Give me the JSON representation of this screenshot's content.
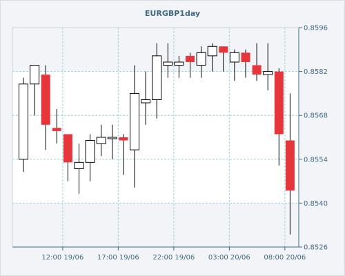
{
  "chart_data": {
    "type": "candlestick",
    "title": "EURGBP1day",
    "ylim": [
      0.8526,
      0.8596
    ],
    "y_ticks": [
      "0.8596",
      "0.8582",
      "0.8568",
      "0.8554",
      "0.8540",
      "0.8526"
    ],
    "x_tick_labels": [
      "12:00 19/06",
      "17:00 19/06",
      "22:00 19/06",
      "03:00 20/06",
      "08:00 20/06"
    ],
    "grid": true,
    "colors": {
      "bullish": "#ffffff",
      "bearish": "#e5363c",
      "outline": "#000000",
      "grid": "#9fd3da",
      "plot_bg_white": "#ffffff",
      "plot_bg": "#f2f4f7",
      "axis_text": "#3f6a85"
    },
    "candles": [
      {
        "open": 0.8554,
        "high": 0.858,
        "low": 0.855,
        "close": 0.8578
      },
      {
        "open": 0.8578,
        "high": 0.8584,
        "low": 0.8568,
        "close": 0.8584
      },
      {
        "open": 0.8581,
        "high": 0.8584,
        "low": 0.8557,
        "close": 0.8565
      },
      {
        "open": 0.8564,
        "high": 0.857,
        "low": 0.8559,
        "close": 0.8563
      },
      {
        "open": 0.8562,
        "high": 0.8562,
        "low": 0.8547,
        "close": 0.8553
      },
      {
        "open": 0.8551,
        "high": 0.8559,
        "low": 0.8543,
        "close": 0.8553
      },
      {
        "open": 0.8553,
        "high": 0.8562,
        "low": 0.8547,
        "close": 0.856
      },
      {
        "open": 0.8559,
        "high": 0.8565,
        "low": 0.8555,
        "close": 0.8561
      },
      {
        "open": 0.8561,
        "high": 0.8565,
        "low": 0.8554,
        "close": 0.8561
      },
      {
        "open": 0.8561,
        "high": 0.8562,
        "low": 0.8549,
        "close": 0.856
      },
      {
        "open": 0.8557,
        "high": 0.8584,
        "low": 0.8545,
        "close": 0.8575
      },
      {
        "open": 0.8572,
        "high": 0.8582,
        "low": 0.8565,
        "close": 0.8573
      },
      {
        "open": 0.8573,
        "high": 0.8591,
        "low": 0.8567,
        "close": 0.8587
      },
      {
        "open": 0.8584,
        "high": 0.8591,
        "low": 0.858,
        "close": 0.8585
      },
      {
        "open": 0.8584,
        "high": 0.8587,
        "low": 0.858,
        "close": 0.8585
      },
      {
        "open": 0.8587,
        "high": 0.8588,
        "low": 0.858,
        "close": 0.8585
      },
      {
        "open": 0.8584,
        "high": 0.859,
        "low": 0.858,
        "close": 0.8588
      },
      {
        "open": 0.8587,
        "high": 0.8591,
        "low": 0.8582,
        "close": 0.859
      },
      {
        "open": 0.859,
        "high": 0.859,
        "low": 0.8582,
        "close": 0.8588
      },
      {
        "open": 0.8585,
        "high": 0.8589,
        "low": 0.8579,
        "close": 0.8588
      },
      {
        "open": 0.8588,
        "high": 0.8589,
        "low": 0.858,
        "close": 0.8585
      },
      {
        "open": 0.8584,
        "high": 0.8591,
        "low": 0.8579,
        "close": 0.8581
      },
      {
        "open": 0.8581,
        "high": 0.8591,
        "low": 0.8576,
        "close": 0.8582
      },
      {
        "open": 0.8582,
        "high": 0.8583,
        "low": 0.8552,
        "close": 0.8562
      },
      {
        "open": 0.856,
        "high": 0.8575,
        "low": 0.853,
        "close": 0.8544
      }
    ]
  }
}
